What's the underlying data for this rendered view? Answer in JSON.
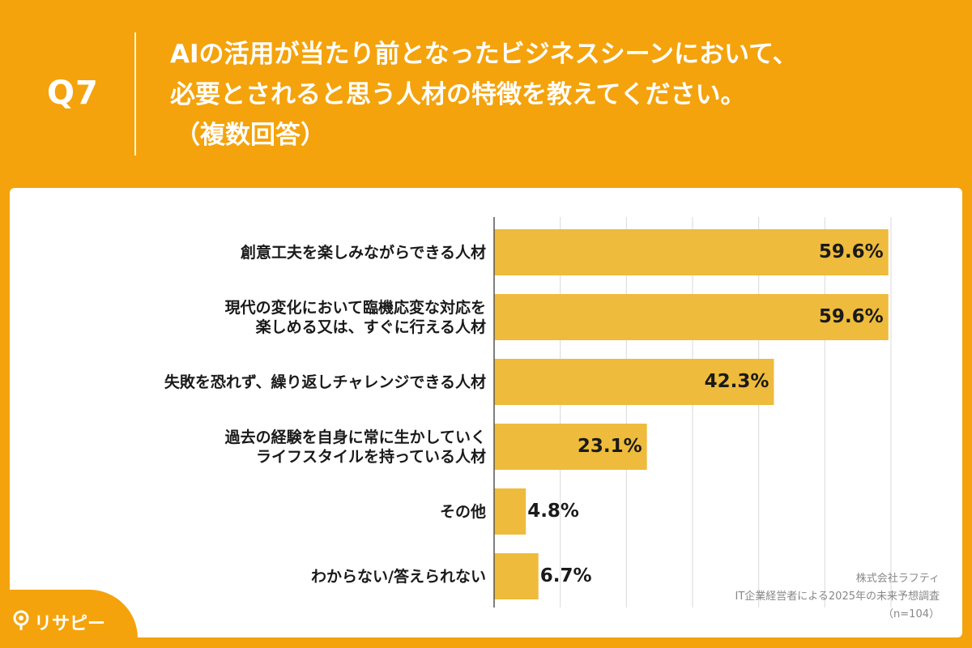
{
  "question": {
    "number": "Q7",
    "title_lines": [
      "AIの活用が当たり前となったビジネスシーンにおいて、",
      "必要とされると思う人材の特徴を教えてください。",
      "（複数回答）"
    ]
  },
  "chart_data": {
    "type": "bar",
    "orientation": "horizontal",
    "categories": [
      [
        "創意工夫を楽しみながらできる人材"
      ],
      [
        "現代の変化において臨機応変な対応を",
        "楽しめる又は、すぐに行える人材"
      ],
      [
        "失敗を恐れず、繰り返しチャレンジできる人材"
      ],
      [
        "過去の経験を自身に常に生かしていく",
        "ライフスタイルを持っている人材"
      ],
      [
        "その他"
      ],
      [
        "わからない/答えられない"
      ]
    ],
    "values": [
      59.6,
      59.6,
      42.3,
      23.1,
      4.8,
      6.7
    ],
    "value_labels": [
      "59.6%",
      "59.6%",
      "42.3%",
      "23.1%",
      "4.8%",
      "6.7%"
    ],
    "xlim": [
      0,
      60
    ],
    "grid": true,
    "bar_color": "#eebb3c"
  },
  "source": {
    "company": "株式会社ラフティ",
    "survey": "IT企業経営者による2025年の未来予想調査",
    "sample": "（n=104）"
  },
  "brand": {
    "name": "リサピー"
  },
  "colors": {
    "background": "#f4a30c",
    "bar": "#eebb3c",
    "grid": "#d9d9d9",
    "axis": "#555555"
  }
}
